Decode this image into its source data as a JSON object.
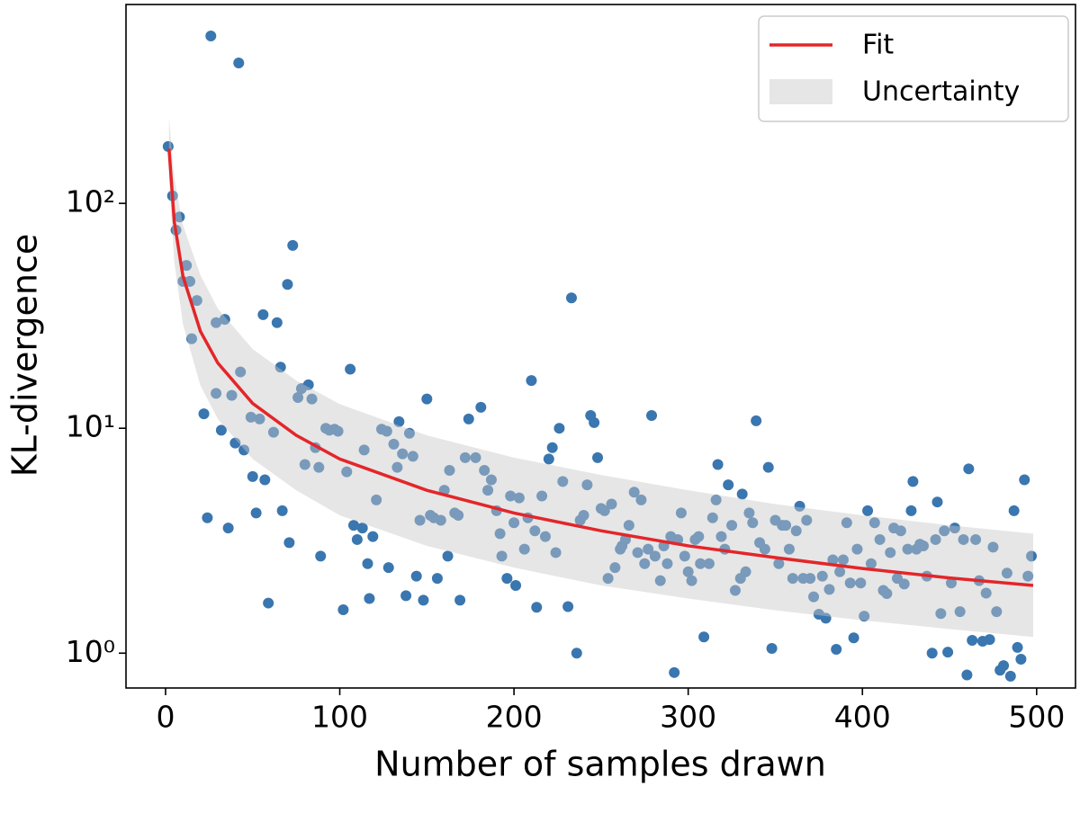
{
  "chart_data": {
    "type": "scatter",
    "xlabel": "Number of samples drawn",
    "ylabel": "KL-divergence",
    "xlim": [
      -22.7,
      522.3
    ],
    "ylim": [
      0.7,
      766
    ],
    "xticks": [
      0,
      100,
      200,
      300,
      400,
      500
    ],
    "yticks": [
      {
        "value": 1,
        "label": "10⁰"
      },
      {
        "value": 10,
        "label": "10¹"
      },
      {
        "value": 100,
        "label": "10²"
      }
    ],
    "log_y": true,
    "legend": "upper right",
    "points": {
      "color": "#3a76af",
      "x": [
        1.5,
        4,
        8,
        6,
        12,
        10,
        14,
        15,
        18,
        22,
        24,
        26,
        29,
        34,
        29,
        32,
        38,
        40,
        36,
        42,
        43,
        45,
        49,
        50,
        52,
        54,
        56,
        57,
        59,
        62,
        64,
        66,
        67,
        70,
        71,
        73,
        76,
        78,
        80,
        82,
        84,
        86,
        88,
        89,
        92,
        94,
        97,
        99,
        102,
        104,
        106,
        108,
        110,
        113,
        114,
        116,
        117,
        119,
        121,
        124,
        127,
        128,
        131,
        133,
        134,
        136,
        138,
        140,
        142,
        144,
        146,
        148,
        150,
        152,
        154,
        156,
        158,
        160,
        162,
        163,
        166,
        168,
        169,
        172,
        174,
        178,
        181,
        183,
        185,
        187,
        190,
        192,
        193,
        196,
        198,
        200,
        201,
        203,
        206,
        208,
        210,
        212,
        213,
        216,
        218,
        220,
        222,
        224,
        226,
        228,
        231,
        233,
        236,
        238,
        240,
        242,
        244,
        246,
        248,
        250,
        252,
        254,
        256,
        258,
        261,
        262,
        264,
        266,
        269,
        271,
        273,
        275,
        277,
        279,
        281,
        284,
        286,
        288,
        290,
        292,
        294,
        296,
        298,
        300,
        302,
        304,
        306,
        307,
        309,
        312,
        314,
        316,
        317,
        319,
        321,
        323,
        325,
        327,
        330,
        331,
        333,
        335,
        337,
        339,
        341,
        344,
        346,
        348,
        350,
        352,
        354,
        356,
        358,
        360,
        362,
        364,
        366,
        368,
        370,
        372,
        375,
        377,
        379,
        381,
        383,
        385,
        387,
        389,
        391,
        393,
        395,
        397,
        399,
        401,
        403,
        405,
        407,
        410,
        412,
        414,
        416,
        418,
        420,
        422,
        424,
        426,
        428,
        429,
        431,
        433,
        435,
        437,
        440,
        442,
        443,
        445,
        447,
        449,
        451,
        453,
        456,
        458,
        460,
        461,
        463,
        465,
        467,
        469,
        471,
        473,
        475,
        477,
        479,
        481,
        483,
        485,
        487,
        489,
        491,
        493,
        495,
        497
      ],
      "values": [
        179,
        108,
        87,
        76,
        53,
        45,
        45,
        25,
        37,
        11.6,
        4.0,
        555,
        29.5,
        30.5,
        14.3,
        9.8,
        14,
        8.6,
        3.6,
        421,
        17.8,
        8,
        11.2,
        6.1,
        4.2,
        11,
        32,
        5.9,
        1.67,
        9.6,
        29.5,
        18.7,
        4.3,
        43.6,
        3.1,
        65,
        13.7,
        15,
        6.9,
        15.6,
        13.5,
        8.2,
        6.7,
        2.7,
        10,
        9.8,
        9.9,
        9.7,
        1.56,
        6.4,
        18.3,
        3.7,
        3.2,
        3.6,
        8,
        2.5,
        1.75,
        3.3,
        4.8,
        9.9,
        9.7,
        2.4,
        8.5,
        6.7,
        10.7,
        7.7,
        1.8,
        9.5,
        7.5,
        2.2,
        3.9,
        1.72,
        13.5,
        4.1,
        4,
        2.15,
        3.9,
        5.3,
        2.7,
        6.5,
        4.2,
        4.1,
        1.72,
        7.4,
        11,
        7.4,
        12.4,
        6.5,
        5.3,
        5.9,
        4.3,
        3.4,
        2.7,
        2.15,
        5,
        3.8,
        2,
        4.9,
        2.9,
        4,
        16.3,
        3.5,
        1.6,
        5,
        3.3,
        7.3,
        8.2,
        2.8,
        10,
        5.8,
        1.61,
        38,
        1,
        3.9,
        4.1,
        5.6,
        11.4,
        10.6,
        7.4,
        4.4,
        4.3,
        2.15,
        4.6,
        2.4,
        2.9,
        3,
        3.2,
        3.7,
        5.2,
        2.8,
        4.8,
        2.5,
        2.9,
        11.4,
        2.7,
        2.1,
        3,
        2.5,
        3.3,
        0.82,
        3.2,
        4.2,
        2.7,
        2.3,
        2.1,
        3.2,
        3.3,
        2.5,
        1.18,
        2.5,
        4,
        4.8,
        6.9,
        3.3,
        2.9,
        5.6,
        3.7,
        1.9,
        2.15,
        5.1,
        2.3,
        4.2,
        3.8,
        10.8,
        3.1,
        2.9,
        6.7,
        1.05,
        3.9,
        2.5,
        3.7,
        3.7,
        2.9,
        2.15,
        3.5,
        4.5,
        2.15,
        3.9,
        2.15,
        1.78,
        1.49,
        2.2,
        1.43,
        1.92,
        2.6,
        1.04,
        2.3,
        2.6,
        3.8,
        2.05,
        1.17,
        2.9,
        2.05,
        1.46,
        4.3,
        2.5,
        3.8,
        3.2,
        1.9,
        1.84,
        2.8,
        3.6,
        2.15,
        3.5,
        2.03,
        2.9,
        4.3,
        5.8,
        2.9,
        3.05,
        3,
        2.2,
        1,
        3.2,
        4.7,
        1.5,
        3.5,
        1.01,
        2.05,
        3.6,
        1.53,
        3.2,
        0.8,
        6.6,
        1.14,
        3.2,
        2.1,
        1.13,
        1.85,
        1.15,
        2.96,
        1.53,
        0.84,
        0.88,
        2.27,
        0.79,
        4.3,
        1.06,
        0.94,
        5.9,
        2.2,
        2.7
      ]
    },
    "band": {
      "name": "Uncertainty",
      "color": "#c8c8c8",
      "x": [
        2,
        5,
        10,
        20,
        30,
        50,
        75,
        100,
        150,
        200,
        250,
        300,
        350,
        400,
        450,
        498
      ],
      "lower": [
        130,
        55,
        29,
        15.5,
        11,
        7.3,
        5.3,
        4.1,
        3.0,
        2.4,
        2.0,
        1.75,
        1.55,
        1.4,
        1.28,
        1.18
      ],
      "upper": [
        240,
        130,
        80,
        48,
        34,
        22.5,
        16.3,
        12.8,
        9.3,
        7.4,
        6.2,
        5.3,
        4.6,
        4.1,
        3.7,
        3.4
      ]
    },
    "series": [
      {
        "name": "Fit",
        "color": "#e3262a",
        "x": [
          2,
          5,
          10,
          20,
          30,
          50,
          75,
          100,
          150,
          200,
          250,
          300,
          350,
          400,
          450,
          498
        ],
        "values": [
          175,
          83,
          47.4,
          27,
          19.5,
          12.9,
          9.3,
          7.3,
          5.3,
          4.2,
          3.5,
          3.0,
          2.66,
          2.38,
          2.16,
          2.0
        ]
      }
    ]
  }
}
